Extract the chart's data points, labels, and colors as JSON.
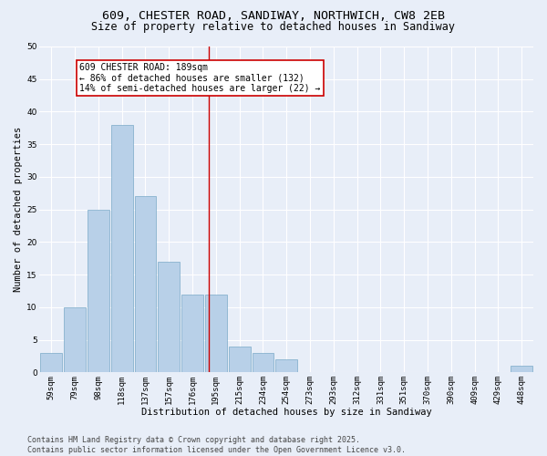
{
  "title_line1": "609, CHESTER ROAD, SANDIWAY, NORTHWICH, CW8 2EB",
  "title_line2": "Size of property relative to detached houses in Sandiway",
  "xlabel": "Distribution of detached houses by size in Sandiway",
  "ylabel": "Number of detached properties",
  "bin_labels": [
    "59sqm",
    "79sqm",
    "98sqm",
    "118sqm",
    "137sqm",
    "157sqm",
    "176sqm",
    "195sqm",
    "215sqm",
    "234sqm",
    "254sqm",
    "273sqm",
    "293sqm",
    "312sqm",
    "331sqm",
    "351sqm",
    "370sqm",
    "390sqm",
    "409sqm",
    "429sqm",
    "448sqm"
  ],
  "bar_values": [
    3,
    10,
    25,
    38,
    27,
    17,
    12,
    12,
    4,
    3,
    2,
    0,
    0,
    0,
    0,
    0,
    0,
    0,
    0,
    0,
    1
  ],
  "bar_color": "#b8d0e8",
  "bar_edgecolor": "#7aaac8",
  "vline_color": "#cc0000",
  "annotation_text": "609 CHESTER ROAD: 189sqm\n← 86% of detached houses are smaller (132)\n14% of semi-detached houses are larger (22) →",
  "annotation_box_color": "#ffffff",
  "annotation_box_edgecolor": "#cc0000",
  "ylim": [
    0,
    50
  ],
  "yticks": [
    0,
    5,
    10,
    15,
    20,
    25,
    30,
    35,
    40,
    45,
    50
  ],
  "bg_color": "#e8eef8",
  "plot_bg_color": "#e8eef8",
  "footer_line1": "Contains HM Land Registry data © Crown copyright and database right 2025.",
  "footer_line2": "Contains public sector information licensed under the Open Government Licence v3.0.",
  "title_fontsize": 9.5,
  "subtitle_fontsize": 8.5,
  "axis_label_fontsize": 7.5,
  "tick_fontsize": 6.5,
  "annotation_fontsize": 7,
  "footer_fontsize": 6
}
